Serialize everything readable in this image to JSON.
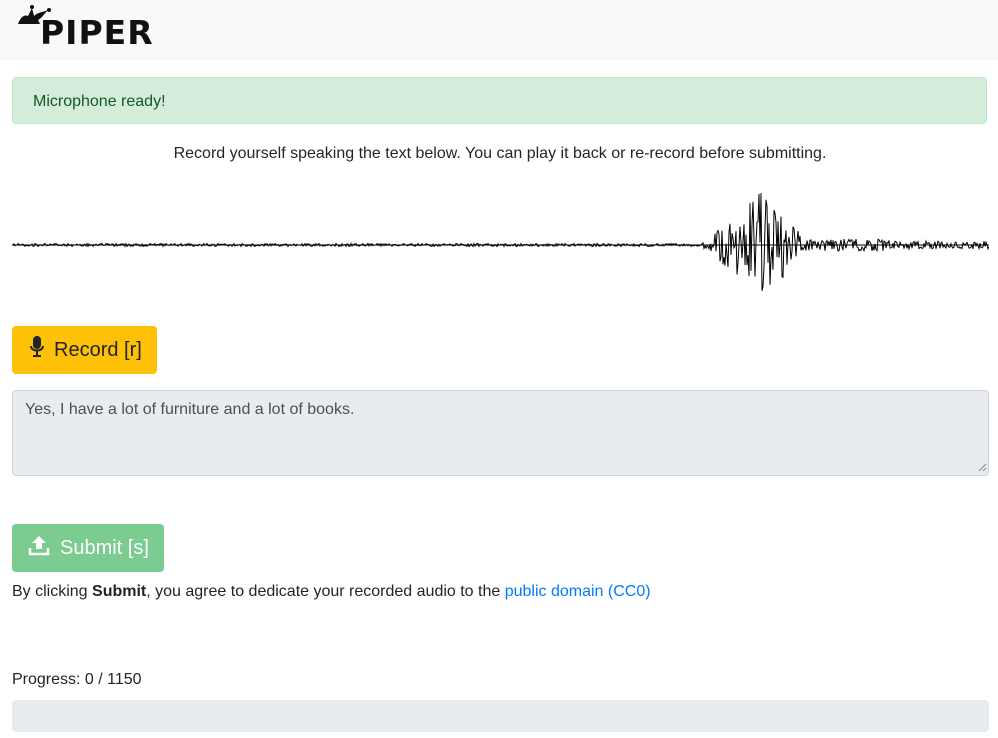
{
  "navbar": {
    "logo_text": "PIPER",
    "logo_icon": "jester-hat-icon"
  },
  "alert": {
    "text": "Microphone ready!"
  },
  "instructions": "Record yourself speaking the text below. You can play it back or re-record before submitting.",
  "waveform": {
    "icon": "audio-waveform"
  },
  "record_button": {
    "label": "Record [r]",
    "icon": "microphone-icon",
    "color": "#ffc107"
  },
  "prompt_text": "Yes, I have a lot of furniture and a lot of books.",
  "submit_button": {
    "label": "Submit [s]",
    "icon": "upload-icon",
    "color": "#7ccb91"
  },
  "agreement": {
    "prefix": "By clicking ",
    "bold": "Submit",
    "middle": ", you agree to dedicate your recorded audio to the ",
    "link_text": "public domain (CC0)",
    "link_color": "#007bff"
  },
  "progress": {
    "label": "Progress: 0 / 1150",
    "current": 0,
    "total": 1150
  }
}
